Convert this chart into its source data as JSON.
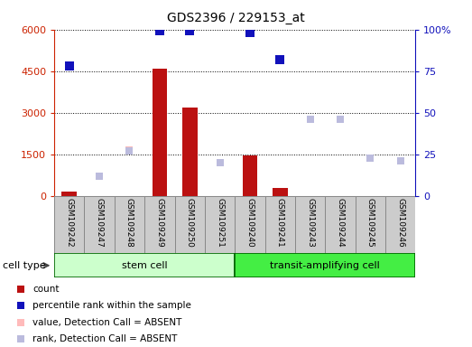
{
  "title": "GDS2396 / 229153_at",
  "samples": [
    "GSM109242",
    "GSM109247",
    "GSM109248",
    "GSM109249",
    "GSM109250",
    "GSM109251",
    "GSM109240",
    "GSM109241",
    "GSM109243",
    "GSM109244",
    "GSM109245",
    "GSM109246"
  ],
  "count_values": [
    150,
    0,
    0,
    4600,
    3200,
    0,
    1450,
    300,
    0,
    0,
    0,
    0
  ],
  "percentile_rank": [
    78,
    null,
    null,
    99,
    99,
    null,
    98,
    82,
    null,
    null,
    null,
    null
  ],
  "value_absent_vals": [
    null,
    null,
    1650,
    null,
    null,
    null,
    null,
    null,
    null,
    null,
    null,
    null
  ],
  "rank_absent_vals": [
    null,
    12,
    27,
    null,
    null,
    20,
    null,
    null,
    46,
    46,
    23,
    21
  ],
  "ylim_left": [
    0,
    6000
  ],
  "ylim_right": [
    0,
    100
  ],
  "yticks_left": [
    0,
    1500,
    3000,
    4500,
    6000
  ],
  "ytick_labels_left": [
    "0",
    "1500",
    "3000",
    "4500",
    "6000"
  ],
  "yticks_right": [
    0,
    25,
    50,
    75,
    100
  ],
  "ytick_labels_right": [
    "0",
    "25",
    "50",
    "75",
    "100%"
  ],
  "bar_color": "#bb1111",
  "blue_marker_color": "#1111bb",
  "absent_value_color": "#ffbbbb",
  "absent_rank_color": "#bbbbdd",
  "stem_color": "#ccffcc",
  "transit_color": "#44ee44",
  "cell_border_color": "#006600",
  "label_box_color": "#cccccc",
  "label_box_border": "#888888",
  "legend_items": [
    {
      "label": "count",
      "color": "#bb1111"
    },
    {
      "label": "percentile rank within the sample",
      "color": "#1111bb"
    },
    {
      "label": "value, Detection Call = ABSENT",
      "color": "#ffbbbb"
    },
    {
      "label": "rank, Detection Call = ABSENT",
      "color": "#bbbbdd"
    }
  ]
}
